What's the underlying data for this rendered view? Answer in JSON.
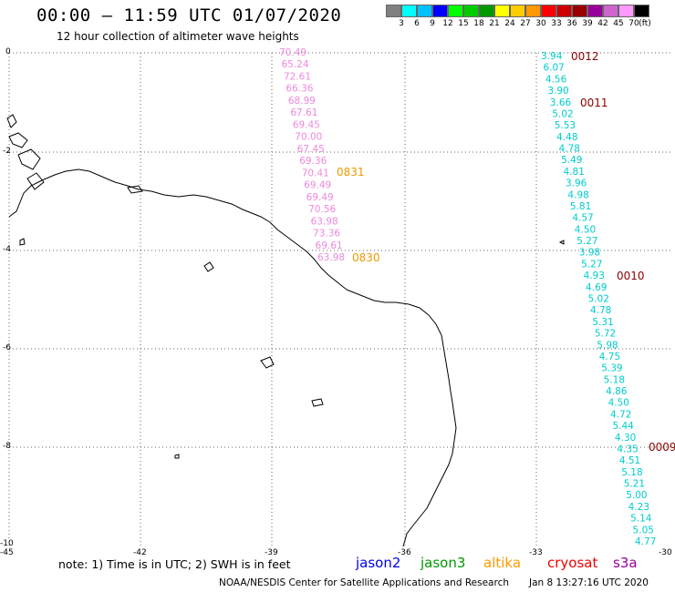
{
  "header": {
    "title": "00:00 – 11:59 UTC 01/07/2020",
    "subtitle": "12 hour collection of altimeter wave heights"
  },
  "legend": {
    "colors": [
      "#808080",
      "#00ffff",
      "#00c0ff",
      "#0000ff",
      "#00ff00",
      "#00cc00",
      "#009900",
      "#ffff00",
      "#ffcc00",
      "#ff9900",
      "#ff0000",
      "#cc0000",
      "#990000",
      "#990099",
      "#cc66cc",
      "#ff99ff",
      "#000000"
    ],
    "labels": [
      "3",
      "6",
      "9",
      "12",
      "15",
      "18",
      "21",
      "24",
      "27",
      "30",
      "33",
      "36",
      "39",
      "42",
      "45",
      "70",
      "(ft)"
    ]
  },
  "axes": {
    "y_ticks": [
      "0",
      "-2",
      "-4",
      "-6",
      "-8",
      "-10"
    ],
    "x_ticks": [
      "-45",
      "-42",
      "-39",
      "-36",
      "-33",
      "-30"
    ]
  },
  "tracks": {
    "cryosat": {
      "color": "#ee88dd",
      "values": [
        "70.49",
        "65.24",
        "72.61",
        "66.36",
        "68.99",
        "67.61",
        "69.45",
        "70.00",
        "67.45",
        "69.36",
        "70.41",
        "69.49",
        "69.49",
        "70.56",
        "63.98",
        "73.36",
        "69.61",
        "63.98"
      ]
    },
    "jason3": {
      "color": "#00cccc",
      "values": [
        "3.94",
        "6.07",
        "4.56",
        "3.90",
        "3.66",
        "5.02",
        "5.53",
        "4.48",
        "4.78",
        "5.49",
        "4.81",
        "3.96",
        "4.98",
        "5.81",
        "4.57",
        "4.50",
        "5.27",
        "3.98",
        "5.27",
        "4.93",
        "4.69",
        "5.02",
        "4.78",
        "5.31",
        "5.72",
        "5.98",
        "4.75",
        "5.39",
        "5.18",
        "4.86",
        "4.50",
        "4.72",
        "5.44",
        "4.30",
        "4.35",
        "4.51",
        "5.18",
        "5.21",
        "5.00",
        "4.23",
        "5.14",
        "5.05",
        "4.77"
      ]
    }
  },
  "time_labels": [
    {
      "text": "0831",
      "color": "#ee9900"
    },
    {
      "text": "0830",
      "color": "#ee9900"
    },
    {
      "text": "0012",
      "color": "#880000"
    },
    {
      "text": "0011",
      "color": "#880000"
    },
    {
      "text": "0010",
      "color": "#880000"
    },
    {
      "text": "0009",
      "color": "#880000"
    }
  ],
  "footer": {
    "note": "note: 1) Time is in UTC; 2) SWH is in feet",
    "missions": [
      {
        "name": "jason2",
        "color": "#0000ee"
      },
      {
        "name": "jason3",
        "color": "#009900"
      },
      {
        "name": "altika",
        "color": "#ff9900"
      },
      {
        "name": "cryosat",
        "color": "#ee0000"
      },
      {
        "name": "s3a",
        "color": "#990099"
      }
    ],
    "credit": "NOAA/NESDIS Center for Satellite Applications and Research",
    "timestamp": "Jan  8 13:27:16 UTC 2020"
  }
}
